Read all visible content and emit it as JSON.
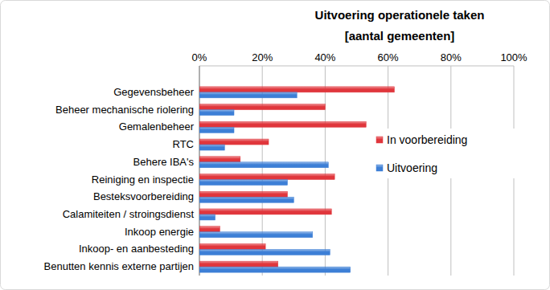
{
  "chart_data": {
    "type": "bar",
    "orientation": "horizontal",
    "title": "Uitvoering operationele taken",
    "subtitle": "[aantal gemeenten]",
    "categories": [
      "Gegevensbeheer",
      "Beheer mechanische riolering",
      "Gemalenbeheer",
      "RTC",
      "Behere IBA's",
      "Reiniging en inspectie",
      "Besteksvoorbereiding",
      "Calamiteiten / stroingsdienst",
      "Inkoop energie",
      "Inkoop- en aanbesteding",
      "Benutten kennis externe partijen"
    ],
    "series": [
      {
        "name": "In voorbereiding",
        "color": "#e0363c",
        "values": [
          62,
          40,
          53,
          22,
          13,
          43,
          28,
          42,
          6.5,
          21,
          25
        ]
      },
      {
        "name": "Uitvoering",
        "color": "#3d7fd6",
        "values": [
          31,
          11,
          11,
          8,
          41,
          28,
          30,
          5,
          36,
          41.5,
          48
        ]
      }
    ],
    "xlim": [
      0,
      100
    ],
    "xticks": [
      {
        "value": 0,
        "label": "0%"
      },
      {
        "value": 20,
        "label": "20%"
      },
      {
        "value": 40,
        "label": "40%"
      },
      {
        "value": 60,
        "label": "60%"
      },
      {
        "value": 80,
        "label": "80%"
      },
      {
        "value": 100,
        "label": "100%"
      }
    ],
    "grid": true,
    "legend": "right"
  }
}
